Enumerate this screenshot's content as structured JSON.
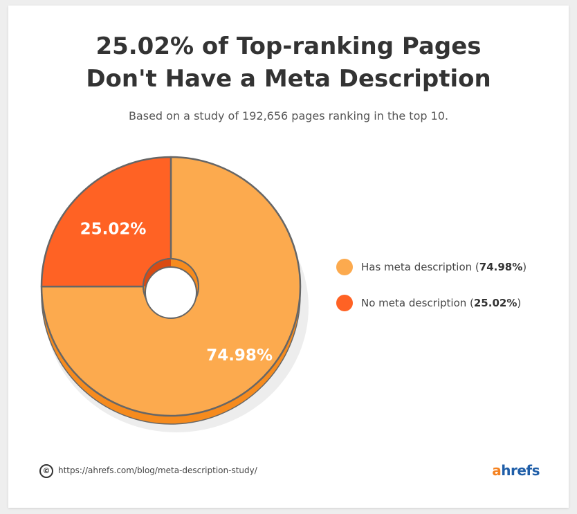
{
  "title_line1": "25.02% of Top-ranking Pages",
  "title_line2": "Don't Have a Meta Description",
  "subtitle": "Based on a study of 192,656 pages ranking in the top 10.",
  "chart_data": {
    "type": "pie",
    "title": "25.02% of Top-ranking Pages Don't Have a Meta Description",
    "subtitle": "Based on a study of 192,656 pages ranking in the top 10.",
    "slices": [
      {
        "name": "Has meta description",
        "value": 74.98,
        "label": "74.98%",
        "color": "#fcaa4e",
        "side_color": "#f68b1e"
      },
      {
        "name": "No meta description",
        "value": 25.02,
        "label": "25.02%",
        "color": "#ff6224",
        "side_color": "#d94a12"
      }
    ],
    "legend_position": "right"
  },
  "legend": [
    {
      "label": "Has meta description (",
      "value": "74.98%",
      "suffix": ")"
    },
    {
      "label": "No meta description (",
      "value": "25.02%",
      "suffix": ")"
    }
  ],
  "footer": {
    "copyright_symbol": "©",
    "url": "https://ahrefs.com/blog/meta-description-study/"
  },
  "logo": {
    "first": "a",
    "rest": "hrefs"
  },
  "colors": {
    "has": "#fcaa4e",
    "no": "#ff6224",
    "title": "#333333"
  }
}
